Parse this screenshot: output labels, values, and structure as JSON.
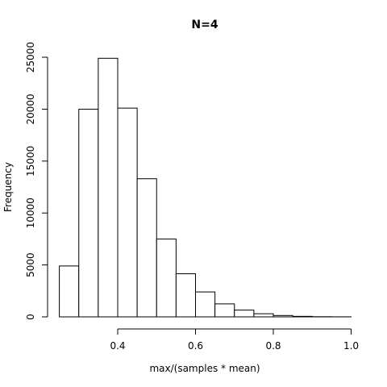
{
  "chart_data": {
    "type": "bar",
    "title": "N=4",
    "xlabel": "max/(samples * mean)",
    "ylabel": "Frequency",
    "bins": [
      {
        "from": 0.25,
        "to": 0.3,
        "value": 4900
      },
      {
        "from": 0.3,
        "to": 0.35,
        "value": 20000
      },
      {
        "from": 0.35,
        "to": 0.4,
        "value": 24900
      },
      {
        "from": 0.4,
        "to": 0.45,
        "value": 20100
      },
      {
        "from": 0.45,
        "to": 0.5,
        "value": 13300
      },
      {
        "from": 0.5,
        "to": 0.55,
        "value": 7500
      },
      {
        "from": 0.55,
        "to": 0.6,
        "value": 4150
      },
      {
        "from": 0.6,
        "to": 0.65,
        "value": 2400
      },
      {
        "from": 0.65,
        "to": 0.7,
        "value": 1250
      },
      {
        "from": 0.7,
        "to": 0.75,
        "value": 650
      },
      {
        "from": 0.75,
        "to": 0.8,
        "value": 300
      },
      {
        "from": 0.8,
        "to": 0.85,
        "value": 130
      },
      {
        "from": 0.85,
        "to": 0.9,
        "value": 50
      },
      {
        "from": 0.9,
        "to": 0.95,
        "value": 15
      },
      {
        "from": 0.95,
        "to": 1.0,
        "value": 5
      }
    ],
    "xlim": [
      0.25,
      1.0
    ],
    "ylim": [
      0,
      25000
    ],
    "xticks": [
      "0.4",
      "0.6",
      "0.8",
      "1.0"
    ],
    "yticks": [
      "0",
      "5000",
      "10000",
      "15000",
      "20000",
      "25000"
    ],
    "grid": false,
    "legend": "none"
  }
}
